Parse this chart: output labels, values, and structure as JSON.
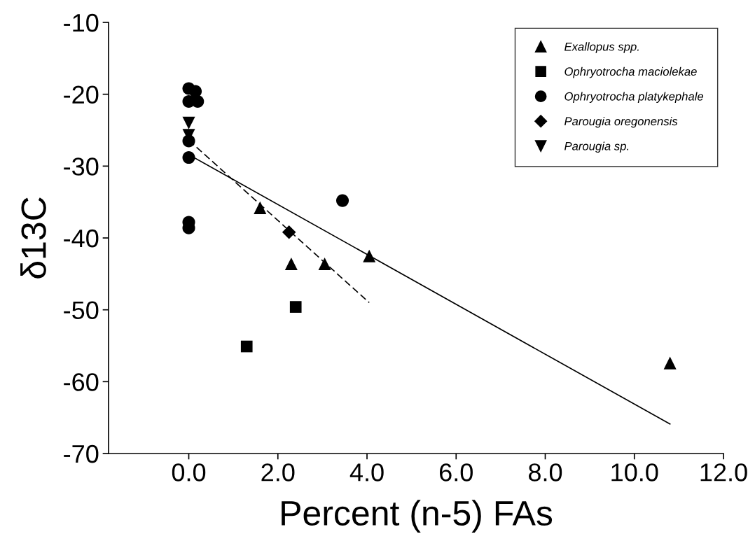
{
  "chart_data": {
    "type": "scatter",
    "xlabel": "Percent (n-5) FAs",
    "ylabel": "δ13C",
    "xlim": [
      -1.8,
      12
    ],
    "ylim": [
      -70,
      -10
    ],
    "xticks": [
      {
        "value": 0,
        "label": "0.0"
      },
      {
        "value": 2,
        "label": "2.0"
      },
      {
        "value": 4,
        "label": "4.0"
      },
      {
        "value": 6,
        "label": "6.0"
      },
      {
        "value": 8,
        "label": "8.0"
      },
      {
        "value": 10,
        "label": "10.0"
      },
      {
        "value": 12,
        "label": "12.0"
      }
    ],
    "yticks": [
      -70,
      -60,
      -50,
      -40,
      -30,
      -20,
      -10
    ],
    "grid": false,
    "legend": "top right",
    "series": [
      {
        "name": "Exallopus spp.",
        "color": "#000000",
        "marker": "triangle",
        "x": [
          1.6,
          2.3,
          3.05,
          4.05,
          10.8
        ],
        "values": [
          -35.8,
          -43.6,
          -43.6,
          -42.5,
          -57.4
        ]
      },
      {
        "name": "Ophryotrocha maciolekae",
        "color": "#000000",
        "marker": "square",
        "x": [
          1.3,
          2.4
        ],
        "values": [
          -55.1,
          -49.6
        ]
      },
      {
        "name": "Ophryotrocha platykephale",
        "color": "#000000",
        "marker": "circle",
        "x": [
          0,
          0.15,
          0,
          0.2,
          0,
          0,
          0,
          0,
          3.45
        ],
        "values": [
          -19.2,
          -19.6,
          -21.0,
          -21.0,
          -26.5,
          -28.8,
          -37.8,
          -38.6,
          -34.8
        ]
      },
      {
        "name": "Parougia oregonensis",
        "color": "#000000",
        "marker": "diamond",
        "x": [
          2.25
        ],
        "values": [
          -39.2
        ]
      },
      {
        "name": "Parougia sp.",
        "color": "#000000",
        "marker": "triangle_down",
        "x": [
          0,
          0
        ],
        "values": [
          -24.0,
          -25.7
        ]
      },
      {
        "type": "line",
        "color": "#000000",
        "line_style": "solid",
        "marker": "none",
        "x": [
          0,
          10.8
        ],
        "values": [
          -28.4,
          -65.9
        ]
      },
      {
        "type": "line",
        "color": "#000000",
        "line_style": "dashed",
        "marker": "none",
        "x": [
          0,
          4.05
        ],
        "values": [
          -26.4,
          -49.0
        ]
      }
    ]
  }
}
